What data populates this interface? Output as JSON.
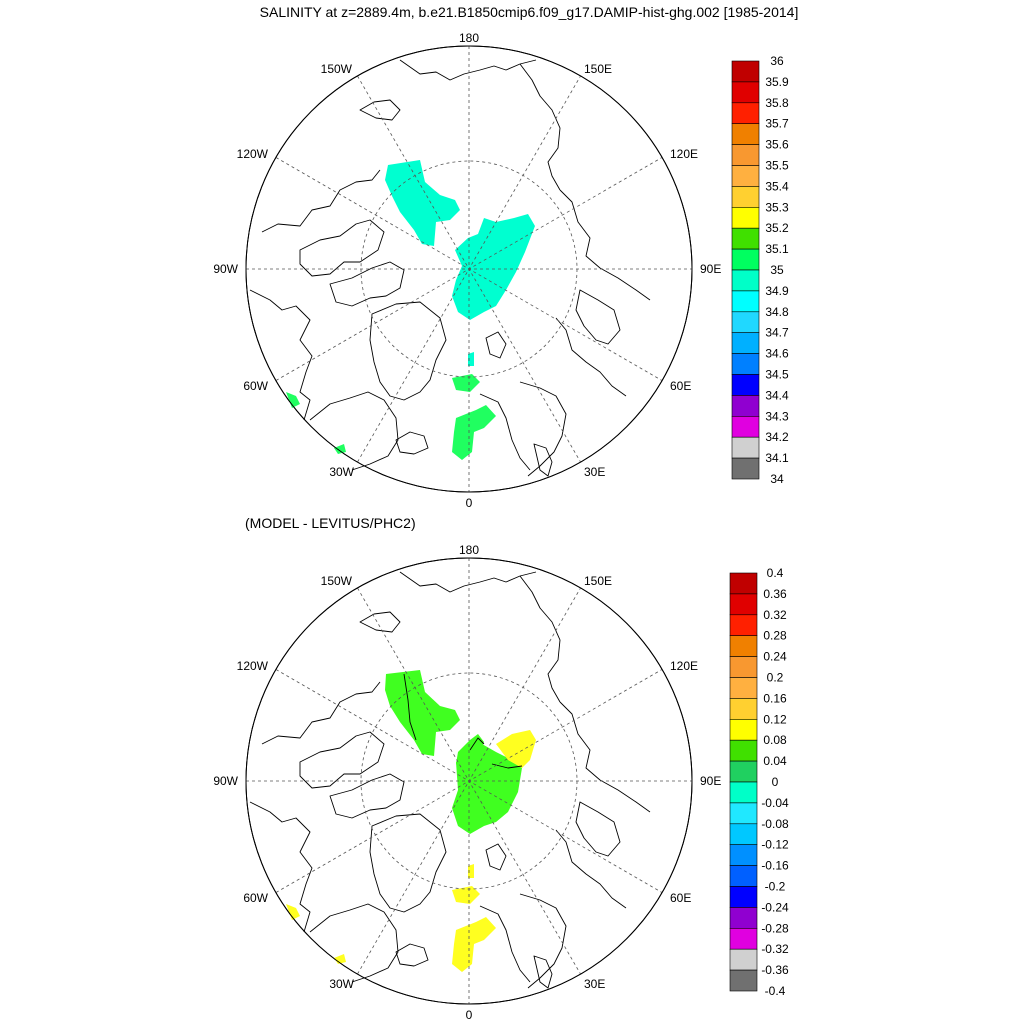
{
  "title": "SALINITY at z=2889.4m, b.e21.B1850cmip6.f09_g17.DAMIP-hist-ghg.002 [1985-2014]",
  "subtitle": "(MODEL - LEVITUS/PHC2)",
  "lon_labels": {
    "top": "180",
    "bottom": "0",
    "left": "90W",
    "right": "90E",
    "upper_left": "150W",
    "upper_right": "150E",
    "mid_upper_left": "120W",
    "mid_upper_right": "120E",
    "mid_lower_left": "60W",
    "mid_lower_right": "60E",
    "lower_left": "30W",
    "lower_right": "30E"
  },
  "top_colorbar": {
    "labels": [
      "36",
      "35.9",
      "35.8",
      "35.7",
      "35.6",
      "35.5",
      "35.4",
      "35.3",
      "35.2",
      "35.1",
      "35",
      "34.9",
      "34.8",
      "34.7",
      "34.6",
      "34.5",
      "34.4",
      "34.3",
      "34.2",
      "34.1",
      "34"
    ],
    "colors": [
      "#c00000",
      "#e00000",
      "#ff2000",
      "#f08000",
      "#f89830",
      "#ffb040",
      "#ffd030",
      "#ffff00",
      "#40e000",
      "#00ff60",
      "#00ffc8",
      "#00ffff",
      "#20d8ff",
      "#00b0ff",
      "#0080ff",
      "#0000ff",
      "#9000d0",
      "#e000e0",
      "#d0d0d0",
      "#707070"
    ]
  },
  "bottom_colorbar": {
    "labels": [
      "0.4",
      "0.36",
      "0.32",
      "0.28",
      "0.24",
      "0.2",
      "0.16",
      "0.12",
      "0.08",
      "0.04",
      "0",
      "-0.04",
      "-0.08",
      "-0.12",
      "-0.16",
      "-0.2",
      "-0.24",
      "-0.28",
      "-0.32",
      "-0.36",
      "-0.4"
    ],
    "colors": [
      "#c00000",
      "#e00000",
      "#ff2000",
      "#f08000",
      "#f89830",
      "#ffb040",
      "#ffd030",
      "#ffff00",
      "#40e000",
      "#20d060",
      "#00ffc8",
      "#20e8ff",
      "#00c8ff",
      "#0090ff",
      "#0060ff",
      "#0000ff",
      "#9000d0",
      "#e000e0",
      "#d0d0d0",
      "#707070"
    ]
  },
  "top_field_colors": {
    "main": "#00ffd0",
    "atlantic": "#20ff60"
  },
  "bottom_field_colors": {
    "main": "#40ff20",
    "positive": "#ffff20"
  }
}
